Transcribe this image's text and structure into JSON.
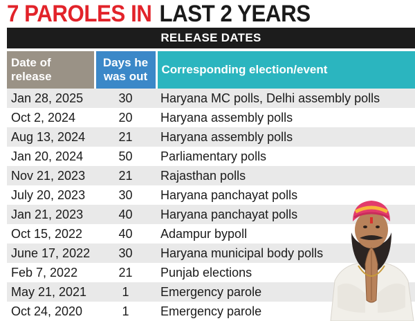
{
  "headline": {
    "part1": "7 PAROLES IN",
    "part2": "LAST 2 YEARS"
  },
  "subtitle": "RELEASE DATES",
  "columns": [
    "Date of release",
    "Days he was out",
    "Corresponding election/event"
  ],
  "rows": [
    {
      "date": "Jan 28, 2025",
      "days": "30",
      "event": "Haryana MC polls, Delhi assembly polls"
    },
    {
      "date": "Oct 2, 2024",
      "days": "20",
      "event": "Haryana assembly polls"
    },
    {
      "date": "Aug 13, 2024",
      "days": "21",
      "event": "Haryana assembly polls"
    },
    {
      "date": "Jan 20, 2024",
      "days": "50",
      "event": "Parliamentary polls"
    },
    {
      "date": "Nov 21, 2023",
      "days": "21",
      "event": "Rajasthan polls"
    },
    {
      "date": "July 20, 2023",
      "days": "30",
      "event": "Haryana panchayat polls"
    },
    {
      "date": "Jan 21, 2023",
      "days": "40",
      "event": "Haryana panchayat polls"
    },
    {
      "date": "Oct 15, 2022",
      "days": "40",
      "event": "Adampur bypoll"
    },
    {
      "date": "June 17, 2022",
      "days": "30",
      "event": "Haryana municipal body polls"
    },
    {
      "date": "Feb 7, 2022",
      "days": "21",
      "event": "Punjab elections"
    },
    {
      "date": "May 21, 2021",
      "days": "1",
      "event": "Emergency parole"
    },
    {
      "date": "Oct 24, 2020",
      "days": "1",
      "event": "Emergency parole"
    }
  ],
  "colors": {
    "headline_red": "#e2232a",
    "subtitle_bar": "#1c1c1c",
    "date_header": "#9a9286",
    "days_header": "#3b88c8",
    "event_header": "#2bb5bf",
    "row_stripe": "#e9e9e9"
  }
}
